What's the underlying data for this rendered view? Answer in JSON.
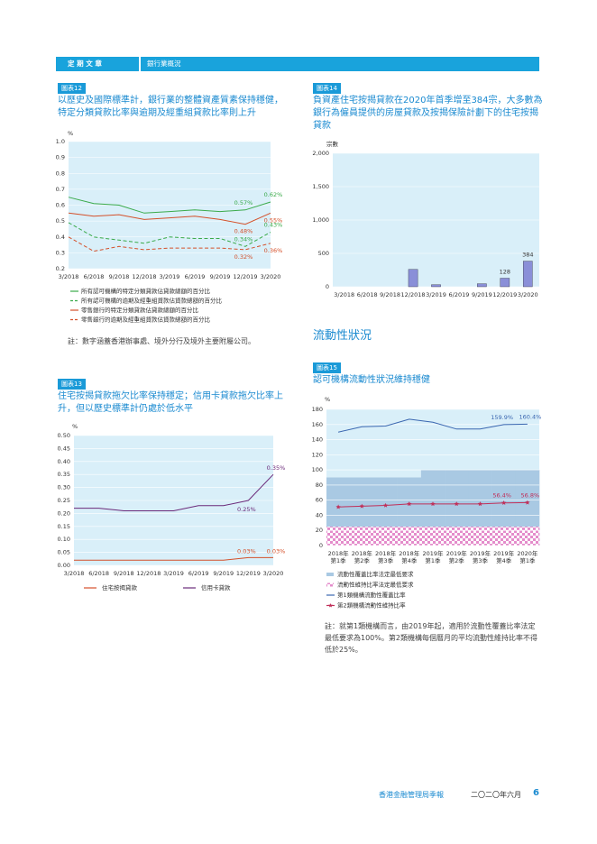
{
  "header": {
    "section": "定 期 文 章",
    "topic": "銀行業概況"
  },
  "section_title": "流動性狀況",
  "footer": {
    "publication": "香港金融管理局季報",
    "date": "二〇二〇年六月",
    "page": "6"
  },
  "chart_data": [
    {
      "type": "line",
      "label": "圖表12",
      "title": "以歷史及國際標準計，銀行業的整體資產質素保持穩健，特定分類貸款比率與逾期及經重組貸款比率則上升",
      "y_unit": "%",
      "categories": [
        "3/2018",
        "6/2018",
        "9/2018",
        "12/2018",
        "3/2019",
        "6/2019",
        "9/2019",
        "12/2019",
        "3/2020"
      ],
      "series": [
        {
          "name": "所有認可機構的特定分類貸款佔貸款總額的百分比",
          "color": "#3aaa4a",
          "values": [
            0.65,
            0.61,
            0.6,
            0.55,
            0.56,
            0.57,
            0.56,
            0.57,
            0.62
          ],
          "value_labels": [
            null,
            null,
            null,
            null,
            null,
            null,
            null,
            "0.57%",
            "0.62%"
          ]
        },
        {
          "name": "所有認可機構的逾期及經重組貸款佔貸款總額的百分比",
          "color": "#3aaa4a",
          "dash": true,
          "values": [
            0.49,
            0.4,
            0.38,
            0.36,
            0.4,
            0.39,
            0.39,
            0.34,
            0.43
          ],
          "value_labels": [
            null,
            null,
            null,
            null,
            null,
            null,
            null,
            "0.34%",
            "0.43%"
          ]
        },
        {
          "name": "零售銀行的特定分類貸款佔貸款總額的百分比",
          "color": "#d4502a",
          "values": [
            0.55,
            0.53,
            0.54,
            0.51,
            0.52,
            0.53,
            0.51,
            0.48,
            0.55
          ],
          "value_labels": [
            null,
            null,
            null,
            null,
            null,
            null,
            null,
            "0.48%",
            "0.55%"
          ]
        },
        {
          "name": "零售銀行的逾期及經重組貸款佔貸款總額的百分比",
          "color": "#d4502a",
          "dash": true,
          "values": [
            0.4,
            0.31,
            0.34,
            0.32,
            0.33,
            0.33,
            0.33,
            0.32,
            0.36
          ],
          "value_labels": [
            null,
            null,
            null,
            null,
            null,
            null,
            null,
            "0.32%",
            "0.36%"
          ]
        }
      ],
      "ylim": [
        0.2,
        1
      ],
      "yticks": [
        0.2,
        0.3,
        0.4,
        0.5,
        0.6,
        0.7,
        0.8,
        0.9,
        {
          "value": 1,
          "label": "1.0"
        }
      ],
      "grid": true,
      "note": "註：數字涵蓋香港辦事處、境外分行及境外主要附屬公司。"
    },
    {
      "type": "line",
      "label": "圖表13",
      "title": "住宅按揭貸款拖欠比率保持穩定；信用卡貸款拖欠比率上升，但以歷史標準計仍處於低水平",
      "y_unit": "%",
      "categories": [
        "3/2018",
        "6/2018",
        "9/2018",
        "12/2018",
        "3/2019",
        "6/2019",
        "9/2019",
        "12/2019",
        "3/2020"
      ],
      "series": [
        {
          "name": "住宅按揭貸款",
          "color": "#d4502a",
          "values": [
            0.02,
            0.02,
            0.02,
            0.02,
            0.02,
            0.02,
            0.02,
            0.03,
            0.03
          ],
          "value_labels": [
            null,
            null,
            null,
            null,
            null,
            null,
            null,
            "0.03%",
            "0.03%"
          ]
        },
        {
          "name": "信用卡貸款",
          "color": "#6b2a7a",
          "values": [
            0.22,
            0.22,
            0.21,
            0.21,
            0.21,
            0.23,
            0.23,
            0.25,
            0.35
          ],
          "value_labels": [
            null,
            null,
            null,
            null,
            null,
            null,
            null,
            "0.25%",
            "0.35%"
          ]
        }
      ],
      "ylim": [
        0,
        0.5
      ],
      "yticks": [
        {
          "value": 0,
          "label": "0.00"
        },
        {
          "value": 0.05,
          "label": "0.05"
        },
        {
          "value": 0.1,
          "label": "0.10"
        },
        {
          "value": 0.15,
          "label": "0.15"
        },
        {
          "value": 0.2,
          "label": "0.20"
        },
        {
          "value": 0.25,
          "label": "0.25"
        },
        {
          "value": 0.3,
          "label": "0.30"
        },
        {
          "value": 0.35,
          "label": "0.35"
        },
        {
          "value": 0.4,
          "label": "0.40"
        },
        {
          "value": 0.45,
          "label": "0.45"
        },
        {
          "value": 0.5,
          "label": "0.50"
        }
      ],
      "grid": true
    },
    {
      "type": "bar",
      "label": "圖表14",
      "title": "負資產住宅按揭貸款在2020年首季增至384宗，大多數為銀行為僱員提供的房屋貸款及按揭保險計劃下的住宅按揭貸款",
      "y_unit": "宗數",
      "categories": [
        "3/2018",
        "6/2018",
        "9/2018",
        "12/2018",
        "3/2019",
        "6/2019",
        "9/2019",
        "12/2019",
        "3/2020"
      ],
      "values": [
        0,
        0,
        0,
        260,
        30,
        0,
        45,
        128,
        384
      ],
      "value_labels": [
        null,
        null,
        null,
        null,
        null,
        null,
        null,
        "128",
        "384"
      ],
      "color": "#8a8fd8",
      "ylim": [
        0,
        2000
      ],
      "yticks": [
        0,
        500,
        {
          "value": 1000,
          "label": "1,000"
        },
        {
          "value": 1500,
          "label": "1,500"
        },
        {
          "value": 2000,
          "label": "2,000"
        }
      ],
      "grid": true
    },
    {
      "type": "combo",
      "label": "圖表15",
      "title": "認可機構流動性狀況維持穩健",
      "y_unit": "%",
      "categories": [
        [
          "2018年",
          "第1季"
        ],
        [
          "2018年",
          "第2季"
        ],
        [
          "2018年",
          "第3季"
        ],
        [
          "2018年",
          "第4季"
        ],
        [
          "2019年",
          "第1季"
        ],
        [
          "2019年",
          "第2季"
        ],
        [
          "2019年",
          "第3季"
        ],
        [
          "2019年",
          "第4季"
        ],
        [
          "2020年",
          "第1季"
        ]
      ],
      "series": [
        {
          "name": "流動性覆蓋比率法定最低要求",
          "type": "area",
          "color": "#a9c9e3",
          "values": [
            90,
            90,
            90,
            90,
            100,
            100,
            100,
            100,
            100
          ]
        },
        {
          "name": "流動性維持比率法定最低要求",
          "type": "area",
          "pattern": "checker",
          "color": "#e48ccb",
          "values": [
            25,
            25,
            25,
            25,
            25,
            25,
            25,
            25,
            25
          ]
        },
        {
          "name": "第1類機構流動性覆蓋比率",
          "type": "line",
          "color": "#3a66b0",
          "values": [
            150,
            157,
            158,
            167,
            163,
            154,
            154,
            159.9,
            160.4
          ],
          "value_labels": [
            null,
            null,
            null,
            null,
            null,
            null,
            null,
            "159.9%",
            "160.4%"
          ]
        },
        {
          "name": "第2類機構流動性維持比率",
          "type": "line",
          "marker": "star",
          "color": "#c0305a",
          "values": [
            51,
            52,
            53,
            55,
            55,
            55,
            55,
            56.4,
            56.8
          ],
          "value_labels": [
            null,
            null,
            null,
            null,
            null,
            null,
            null,
            "56.4%",
            "56.8%"
          ]
        }
      ],
      "ylim": [
        0,
        180
      ],
      "yticks": [
        0,
        20,
        40,
        60,
        80,
        100,
        120,
        140,
        160,
        180
      ],
      "grid": true,
      "note": "註：就第1類機構而言，由2019年起，適用於流動性覆蓋比率法定最低要求為100%。第2類機構每個曆月的平均流動性維持比率不得低於25%。"
    }
  ]
}
